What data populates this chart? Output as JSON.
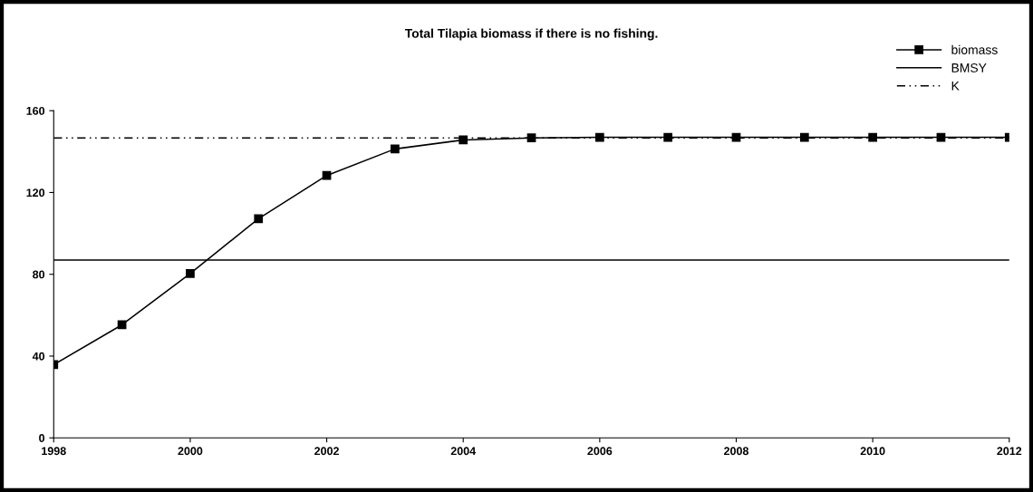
{
  "chart_data": {
    "type": "line",
    "title": "Total Tilapia biomass if there is no fishing.",
    "x": [
      1998,
      1999,
      2000,
      2001,
      2002,
      2003,
      2004,
      2005,
      2006,
      2007,
      2008,
      2009,
      2010,
      2011,
      2012
    ],
    "series": [
      {
        "name": "biomass",
        "color": "#000000",
        "marker": "square",
        "line_style": "solid",
        "values": [
          35.8,
          55.3,
          80.4,
          107.2,
          128.3,
          141.3,
          145.7,
          146.7,
          147,
          147,
          147,
          147,
          147,
          147,
          147
        ]
      },
      {
        "name": "BMSY",
        "color": "#000000",
        "marker": "none",
        "line_style": "solid",
        "values": [
          87,
          87,
          87,
          87,
          87,
          87,
          87,
          87,
          87,
          87,
          87,
          87,
          87,
          87,
          87
        ]
      },
      {
        "name": "K",
        "color": "#000000",
        "marker": "none",
        "line_style": "dashdot",
        "values": [
          146.7,
          146.7,
          146.7,
          146.7,
          146.7,
          146.7,
          146.7,
          146.7,
          146.7,
          146.7,
          146.7,
          146.7,
          146.7,
          146.7,
          146.7
        ]
      }
    ],
    "xlim": [
      1998,
      2012
    ],
    "xticks": [
      1998,
      2000,
      2002,
      2004,
      2006,
      2008,
      2010,
      2012
    ],
    "ylim": [
      0,
      160
    ],
    "yticks": [
      0,
      40,
      80,
      120,
      160
    ],
    "grid": false,
    "legend": "top right"
  }
}
